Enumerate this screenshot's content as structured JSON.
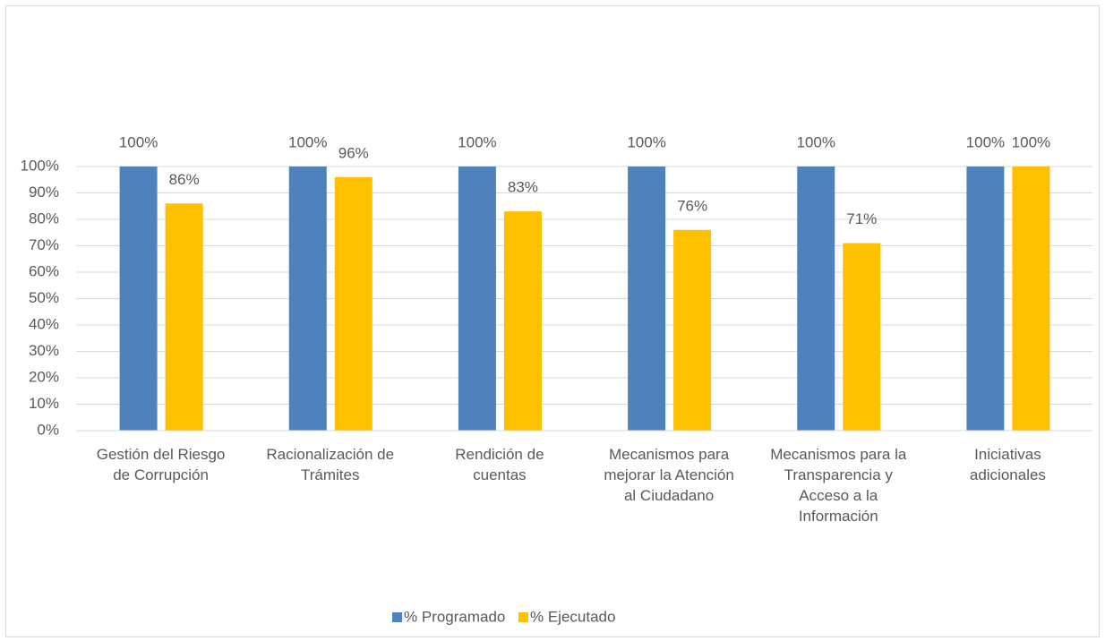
{
  "chart_data": {
    "type": "bar",
    "categories": [
      "Gestión del Riesgo de Corrupción",
      "Racionalización de Trámites",
      "Rendición de cuentas",
      "Mecanismos para mejorar la Atención al Ciudadano",
      "Mecanismos para la Transparencia y Acceso a la Información",
      "Iniciativas adicionales"
    ],
    "series": [
      {
        "name": "% Programado",
        "color": "#4f81bd",
        "values": [
          100,
          100,
          100,
          100,
          100,
          100
        ],
        "value_labels": [
          "100%",
          "100%",
          "100%",
          "100%",
          "100%",
          "100%"
        ]
      },
      {
        "name": "% Ejecutado",
        "color": "#ffc000",
        "values": [
          86,
          96,
          83,
          76,
          71,
          100
        ],
        "value_labels": [
          "86%",
          "96%",
          "83%",
          "76%",
          "71%",
          "100%"
        ]
      }
    ],
    "ylim": [
      0,
      100
    ],
    "yticks": [
      {
        "value": 0,
        "label": "0%"
      },
      {
        "value": 10,
        "label": "10%"
      },
      {
        "value": 20,
        "label": "20%"
      },
      {
        "value": 30,
        "label": "30%"
      },
      {
        "value": 40,
        "label": "40%"
      },
      {
        "value": 50,
        "label": "50%"
      },
      {
        "value": 60,
        "label": "60%"
      },
      {
        "value": 70,
        "label": "70%"
      },
      {
        "value": 80,
        "label": "80%"
      },
      {
        "value": 90,
        "label": "90%"
      },
      {
        "value": 100,
        "label": "100%"
      }
    ],
    "grid": true,
    "legend": "bottom"
  }
}
